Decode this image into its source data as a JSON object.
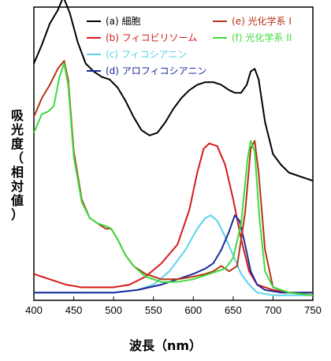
{
  "chart_data": {
    "type": "line",
    "xlabel": "波長（nm）",
    "ylabel": "吸光度（相対値）",
    "xlim": [
      400,
      750
    ],
    "xticks": [
      400,
      450,
      500,
      550,
      600,
      650,
      700,
      750
    ],
    "legend_position": "top",
    "series": [
      {
        "name": "(a) 細胞",
        "color": "#000000",
        "points": [
          [
            400,
            0.88
          ],
          [
            410,
            0.95
          ],
          [
            420,
            1.03
          ],
          [
            430,
            1.08
          ],
          [
            437,
            1.13
          ],
          [
            445,
            1.07
          ],
          [
            455,
            0.96
          ],
          [
            465,
            0.88
          ],
          [
            475,
            0.85
          ],
          [
            485,
            0.83
          ],
          [
            495,
            0.82
          ],
          [
            505,
            0.79
          ],
          [
            515,
            0.74
          ],
          [
            525,
            0.68
          ],
          [
            535,
            0.63
          ],
          [
            545,
            0.61
          ],
          [
            555,
            0.62
          ],
          [
            565,
            0.66
          ],
          [
            575,
            0.71
          ],
          [
            585,
            0.75
          ],
          [
            595,
            0.78
          ],
          [
            605,
            0.8
          ],
          [
            615,
            0.81
          ],
          [
            625,
            0.81
          ],
          [
            635,
            0.8
          ],
          [
            645,
            0.78
          ],
          [
            652,
            0.77
          ],
          [
            660,
            0.77
          ],
          [
            667,
            0.8
          ],
          [
            672,
            0.85
          ],
          [
            677,
            0.86
          ],
          [
            682,
            0.82
          ],
          [
            690,
            0.66
          ],
          [
            700,
            0.54
          ],
          [
            710,
            0.5
          ],
          [
            720,
            0.47
          ],
          [
            730,
            0.46
          ],
          [
            740,
            0.45
          ],
          [
            750,
            0.44
          ]
        ]
      },
      {
        "name": "(b) フィコビリソーム",
        "color": "#d71a1a",
        "points": [
          [
            400,
            0.09
          ],
          [
            410,
            0.08
          ],
          [
            420,
            0.07
          ],
          [
            430,
            0.06
          ],
          [
            440,
            0.05
          ],
          [
            460,
            0.04
          ],
          [
            480,
            0.04
          ],
          [
            500,
            0.04
          ],
          [
            520,
            0.05
          ],
          [
            540,
            0.08
          ],
          [
            560,
            0.13
          ],
          [
            580,
            0.2
          ],
          [
            595,
            0.33
          ],
          [
            605,
            0.47
          ],
          [
            613,
            0.56
          ],
          [
            620,
            0.58
          ],
          [
            630,
            0.57
          ],
          [
            640,
            0.5
          ],
          [
            650,
            0.37
          ],
          [
            660,
            0.22
          ],
          [
            670,
            0.1
          ],
          [
            680,
            0.05
          ],
          [
            700,
            0.03
          ],
          [
            720,
            0.02
          ],
          [
            750,
            0.02
          ]
        ]
      },
      {
        "name": "(c) フィコシアニン",
        "color": "#59d3e8",
        "points": [
          [
            400,
            0.02
          ],
          [
            450,
            0.02
          ],
          [
            500,
            0.02
          ],
          [
            530,
            0.03
          ],
          [
            550,
            0.05
          ],
          [
            570,
            0.1
          ],
          [
            590,
            0.18
          ],
          [
            605,
            0.26
          ],
          [
            615,
            0.3
          ],
          [
            622,
            0.31
          ],
          [
            630,
            0.29
          ],
          [
            640,
            0.23
          ],
          [
            650,
            0.16
          ],
          [
            660,
            0.09
          ],
          [
            670,
            0.05
          ],
          [
            680,
            0.02
          ],
          [
            700,
            0.01
          ],
          [
            750,
            0.01
          ]
        ]
      },
      {
        "name": "(d) アロフィコシアニン",
        "color": "#1b2a9c",
        "points": [
          [
            400,
            0.02
          ],
          [
            450,
            0.02
          ],
          [
            500,
            0.02
          ],
          [
            530,
            0.03
          ],
          [
            560,
            0.05
          ],
          [
            580,
            0.07
          ],
          [
            600,
            0.09
          ],
          [
            615,
            0.11
          ],
          [
            625,
            0.13
          ],
          [
            635,
            0.18
          ],
          [
            645,
            0.25
          ],
          [
            652,
            0.31
          ],
          [
            658,
            0.29
          ],
          [
            665,
            0.2
          ],
          [
            672,
            0.1
          ],
          [
            680,
            0.05
          ],
          [
            690,
            0.03
          ],
          [
            710,
            0.02
          ],
          [
            750,
            0.02
          ]
        ]
      },
      {
        "name": "(e) 光化学系 I",
        "color": "#b5341a",
        "points": [
          [
            400,
            0.68
          ],
          [
            410,
            0.75
          ],
          [
            420,
            0.8
          ],
          [
            430,
            0.86
          ],
          [
            438,
            0.89
          ],
          [
            443,
            0.82
          ],
          [
            450,
            0.55
          ],
          [
            460,
            0.37
          ],
          [
            470,
            0.3
          ],
          [
            480,
            0.28
          ],
          [
            490,
            0.26
          ],
          [
            497,
            0.26
          ],
          [
            505,
            0.22
          ],
          [
            515,
            0.16
          ],
          [
            525,
            0.12
          ],
          [
            540,
            0.09
          ],
          [
            560,
            0.07
          ],
          [
            580,
            0.07
          ],
          [
            600,
            0.08
          ],
          [
            615,
            0.09
          ],
          [
            625,
            0.1
          ],
          [
            635,
            0.12
          ],
          [
            645,
            0.1
          ],
          [
            655,
            0.12
          ],
          [
            665,
            0.32
          ],
          [
            672,
            0.56
          ],
          [
            677,
            0.59
          ],
          [
            682,
            0.47
          ],
          [
            690,
            0.18
          ],
          [
            700,
            0.04
          ],
          [
            720,
            0.02
          ],
          [
            750,
            0.01
          ]
        ]
      },
      {
        "name": "(f) 光化学系 II",
        "color": "#3ddc3d",
        "points": [
          [
            400,
            0.62
          ],
          [
            410,
            0.69
          ],
          [
            418,
            0.7
          ],
          [
            425,
            0.72
          ],
          [
            432,
            0.83
          ],
          [
            438,
            0.88
          ],
          [
            443,
            0.8
          ],
          [
            450,
            0.53
          ],
          [
            460,
            0.36
          ],
          [
            470,
            0.3
          ],
          [
            480,
            0.28
          ],
          [
            490,
            0.27
          ],
          [
            497,
            0.26
          ],
          [
            505,
            0.22
          ],
          [
            515,
            0.16
          ],
          [
            525,
            0.12
          ],
          [
            540,
            0.08
          ],
          [
            560,
            0.06
          ],
          [
            580,
            0.06
          ],
          [
            600,
            0.07
          ],
          [
            610,
            0.08
          ],
          [
            620,
            0.09
          ],
          [
            630,
            0.1
          ],
          [
            640,
            0.11
          ],
          [
            650,
            0.15
          ],
          [
            660,
            0.28
          ],
          [
            668,
            0.52
          ],
          [
            672,
            0.59
          ],
          [
            677,
            0.55
          ],
          [
            683,
            0.3
          ],
          [
            690,
            0.1
          ],
          [
            700,
            0.04
          ],
          [
            720,
            0.02
          ],
          [
            750,
            0.01
          ]
        ]
      }
    ]
  },
  "chart_text": {
    "ylabel_chars": [
      "吸",
      "光",
      "度",
      "（",
      "相",
      "対",
      "値",
      "）"
    ]
  }
}
